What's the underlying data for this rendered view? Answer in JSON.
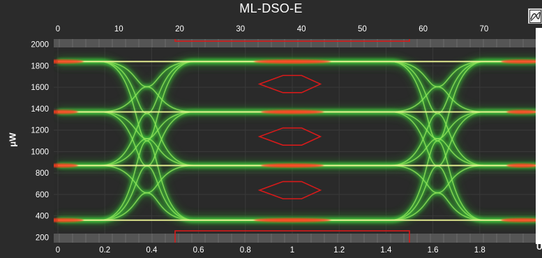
{
  "window": {
    "title": "ML-DSO-E",
    "y_unit": "μW",
    "x_unit_right": "U"
  },
  "axes": {
    "top_ticks": [
      "0",
      "10",
      "20",
      "30",
      "40",
      "50",
      "60",
      "70"
    ],
    "bottom_ticks": [
      "0",
      "0.2",
      "0.4",
      "0.6",
      "0.8",
      "1",
      "1.2",
      "1.4",
      "1.6",
      "1.8"
    ],
    "y_ticks": [
      "2000",
      "1800",
      "1600",
      "1400",
      "1200",
      "1000",
      "800",
      "600",
      "400",
      "200"
    ]
  },
  "icons": {
    "corner": "chart-settings-icon"
  },
  "colors": {
    "background": "#2b2b2b",
    "trace_green": "#3fc23a",
    "trace_yellow": "#f0e94a",
    "trace_red": "#ff3b1e",
    "mask": "#d61a1a"
  },
  "chart_data": {
    "type": "eye-diagram",
    "x_top": {
      "min": 0,
      "max": 77
    },
    "x_bottom": {
      "min": 0,
      "max": 2
    },
    "y": {
      "min": 150,
      "max": 2050
    },
    "levels": [
      360,
      870,
      1370,
      1840
    ],
    "eye_center": 1,
    "crossings": [
      0.38,
      1.62
    ],
    "masks": [
      {
        "x": [
          0.86,
          0.96,
          1.04,
          1.12,
          1.04,
          0.96
        ],
        "y": [
          1630,
          1710,
          1710,
          1630,
          1550,
          1550
        ]
      },
      {
        "x": [
          0.86,
          0.96,
          1.04,
          1.12,
          1.04,
          0.96
        ],
        "y": [
          1140,
          1220,
          1220,
          1140,
          1060,
          1060
        ]
      },
      {
        "x": [
          0.86,
          0.96,
          1.04,
          1.12,
          1.04,
          0.96
        ],
        "y": [
          640,
          720,
          720,
          640,
          560,
          560
        ]
      }
    ],
    "top_limit": {
      "x_start": 0.5,
      "x_end": 1.5,
      "y": 2030
    },
    "bottom_limit": {
      "x_start": 0.5,
      "x_end": 1.5,
      "y": 260
    }
  }
}
